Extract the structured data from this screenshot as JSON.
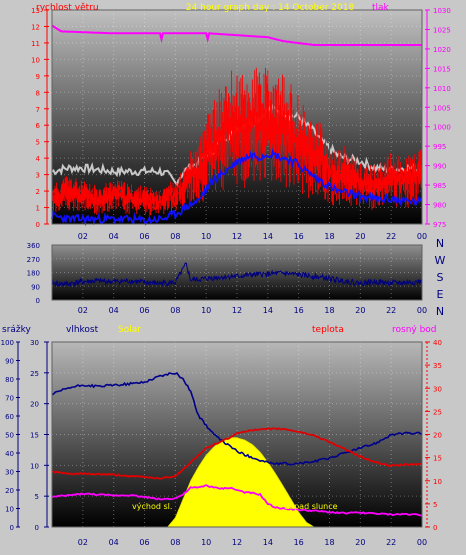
{
  "title": "24 hour graph day : 14 October 2018",
  "x_ticks": [
    "02",
    "04",
    "06",
    "08",
    "10",
    "12",
    "14",
    "16",
    "18",
    "20",
    "22",
    "00"
  ],
  "colors": {
    "background": "#c8c8c8",
    "wind": "#ff0000",
    "gust": "#c8c8c8",
    "pressure": "#ff00ff",
    "humidity": "#00008b",
    "temperature": "#e00000",
    "dewpoint": "#ff00ff",
    "solar": "#ffff00",
    "direction": "#00007f",
    "title": "#ffff00"
  },
  "panels": {
    "wind": {
      "left_label": "rychlost větru",
      "right_label": "tlak",
      "left_ticks": [
        "0",
        "1",
        "2",
        "3",
        "4",
        "5",
        "6",
        "7",
        "8",
        "9",
        "10",
        "11",
        "12",
        "13"
      ],
      "right_ticks": [
        "975",
        "980",
        "985",
        "990",
        "995",
        "1000",
        "1005",
        "1010",
        "1015",
        "1020",
        "1025",
        "1030"
      ]
    },
    "direction": {
      "left_ticks": [
        "0",
        "90",
        "180",
        "270",
        "360"
      ],
      "compass": [
        "N",
        "W",
        "S",
        "E",
        "N"
      ]
    },
    "temp": {
      "label_rain": "srážky",
      "label_humidity": "vlhkost",
      "label_solar": "Solar",
      "label_temp": "teplota",
      "label_dew": "rosný bod",
      "rain_ticks": [
        "0",
        "10",
        "20",
        "30",
        "40",
        "50",
        "60",
        "70",
        "80",
        "90",
        "100"
      ],
      "hum_ticks": [
        "0",
        "5",
        "10",
        "15",
        "20",
        "25",
        "30"
      ],
      "temp_ticks": [
        "0",
        "5",
        "10",
        "15",
        "20",
        "25",
        "30",
        "35",
        "40"
      ],
      "sunrise_label": "východ sl.",
      "sunset_label": "západ slunce"
    }
  },
  "chart_data": [
    {
      "type": "line",
      "title": "24 hour graph day : 14 October 2018",
      "ylabel": "rychlost větru",
      "y2label": "tlak",
      "ylim": [
        0,
        13
      ],
      "y2lim": [
        975,
        1030
      ],
      "x_hours": [
        0,
        1,
        2,
        3,
        4,
        5,
        6,
        7,
        7.5,
        8,
        8.5,
        9,
        9.5,
        10,
        10.5,
        11,
        11.5,
        12,
        12.5,
        13,
        13.5,
        14,
        14.5,
        15,
        15.5,
        16,
        16.5,
        17,
        17.5,
        18,
        18.5,
        19,
        20,
        21,
        22,
        23,
        24
      ],
      "series": [
        {
          "name": "tlak",
          "axis": "right",
          "x": [
            0,
            0.6,
            4,
            7,
            7.1,
            7.2,
            10,
            10.1,
            10.2,
            14,
            15,
            17,
            18,
            24
          ],
          "values": [
            1026,
            1024.5,
            1024,
            1024,
            1022.5,
            1024,
            1024,
            1022.5,
            1024,
            1023,
            1022,
            1021,
            1021,
            1021
          ]
        },
        {
          "name": "gust",
          "values": [
            3.2,
            3.4,
            3.4,
            3.3,
            3.2,
            3.2,
            3.2,
            3.2,
            3.0,
            2.5,
            3.1,
            3.5,
            3.7,
            4.2,
            4.5,
            5.2,
            5.4,
            5.9,
            6.1,
            6.2,
            6.5,
            6.9,
            7.0,
            6.8,
            6.6,
            6.5,
            6.0,
            5.6,
            5.0,
            4.6,
            4.2,
            4.0,
            3.8,
            3.4,
            3.3,
            3.4,
            3.3
          ]
        },
        {
          "name": "wind",
          "values": [
            1.5,
            2.0,
            1.7,
            1.5,
            1.8,
            1.6,
            1.5,
            1.3,
            1.8,
            1.6,
            2.2,
            2.9,
            3.2,
            4.2,
            4.9,
            5.5,
            6.0,
            6.1,
            5.9,
            6.2,
            6.3,
            6.1,
            5.8,
            5.9,
            5.5,
            5.1,
            4.6,
            4.2,
            3.9,
            3.2,
            2.9,
            3.1,
            2.5,
            2.3,
            2.8,
            2.7,
            3.0
          ]
        },
        {
          "name": "wind-avg",
          "values": [
            0.5,
            0.3,
            0.3,
            0.3,
            0.3,
            0.3,
            0.2,
            0.3,
            0.4,
            0.6,
            0.9,
            1.2,
            1.4,
            2.1,
            2.7,
            3.0,
            3.4,
            3.8,
            4.0,
            4.2,
            4.1,
            4.3,
            4.2,
            4.0,
            3.9,
            3.6,
            3.2,
            2.9,
            2.6,
            2.3,
            2.0,
            1.9,
            1.7,
            1.5,
            1.5,
            1.4,
            1.3
          ]
        }
      ]
    },
    {
      "type": "line",
      "ylim": [
        0,
        360
      ],
      "x_hours": [
        0,
        1,
        2,
        3,
        4,
        5,
        6,
        7,
        8,
        8.7,
        9,
        10,
        11,
        12,
        13,
        14,
        15,
        16,
        17,
        18,
        19,
        20,
        21,
        22,
        23,
        24
      ],
      "series": [
        {
          "name": "direction",
          "values": [
            110,
            105,
            120,
            125,
            120,
            125,
            115,
            110,
            115,
            235,
            130,
            140,
            150,
            155,
            165,
            170,
            175,
            165,
            155,
            140,
            125,
            110,
            120,
            110,
            115,
            120
          ]
        }
      ]
    },
    {
      "type": "area",
      "ylabel": "vlhkost",
      "y2label": "teplota",
      "ylim": [
        0,
        30
      ],
      "y2lim": [
        0,
        40
      ],
      "x_hours": [
        0,
        1,
        2,
        3,
        4,
        5,
        6,
        7,
        8,
        8.5,
        9,
        9.5,
        10,
        10.5,
        11,
        11.5,
        12,
        12.5,
        13,
        13.5,
        14,
        14.5,
        15,
        15.5,
        16,
        17,
        18,
        19,
        20,
        21,
        22,
        23,
        24
      ],
      "series": [
        {
          "name": "vlhkost",
          "axis": "left",
          "values": [
            21.5,
            22.5,
            23.0,
            22.8,
            23.0,
            23.2,
            23.5,
            24.5,
            25.0,
            24.0,
            22.0,
            18.0,
            16.5,
            15.0,
            14.0,
            13.2,
            12.3,
            11.7,
            11.3,
            10.8,
            10.5,
            10.2,
            10.3,
            10.2,
            10.3,
            10.6,
            11.2,
            12.0,
            12.8,
            13.6,
            15.0,
            15.2,
            15.2
          ]
        },
        {
          "name": "teplota",
          "axis": "right",
          "values": [
            12.0,
            11.5,
            11.5,
            11.4,
            11.3,
            11.0,
            10.8,
            10.5,
            11.0,
            12.5,
            14.0,
            15.5,
            17.0,
            17.8,
            18.5,
            19.3,
            20.2,
            20.7,
            21.0,
            21.0,
            21.2,
            21.2,
            21.2,
            20.9,
            20.6,
            19.8,
            18.4,
            16.8,
            15.2,
            14.0,
            13.2,
            13.5,
            13.6
          ]
        },
        {
          "name": "rosný bod",
          "axis": "right",
          "values": [
            6.5,
            6.8,
            7.2,
            7.0,
            6.8,
            6.9,
            6.5,
            6.0,
            6.2,
            7.0,
            8.5,
            8.5,
            9.0,
            8.5,
            8.3,
            8.5,
            8.0,
            7.5,
            7.3,
            7.0,
            5.0,
            4.2,
            4.0,
            3.9,
            3.7,
            3.5,
            3.2,
            3.0,
            3.1,
            2.9,
            2.7,
            2.8,
            2.6
          ]
        },
        {
          "name": "Solar",
          "axis": "right",
          "x": [
            7.5,
            8,
            8.5,
            9,
            9.5,
            10,
            10.5,
            11,
            11.5,
            12,
            12.5,
            13,
            13.5,
            14,
            14.5,
            15,
            15.5,
            16,
            16.5,
            17
          ],
          "values": [
            0,
            2,
            6,
            10,
            13,
            15.5,
            17.3,
            18.6,
            19.3,
            19.3,
            18.8,
            17.8,
            16.2,
            14.0,
            11.5,
            8.8,
            6.0,
            3.2,
            1.0,
            0
          ]
        }
      ]
    }
  ]
}
